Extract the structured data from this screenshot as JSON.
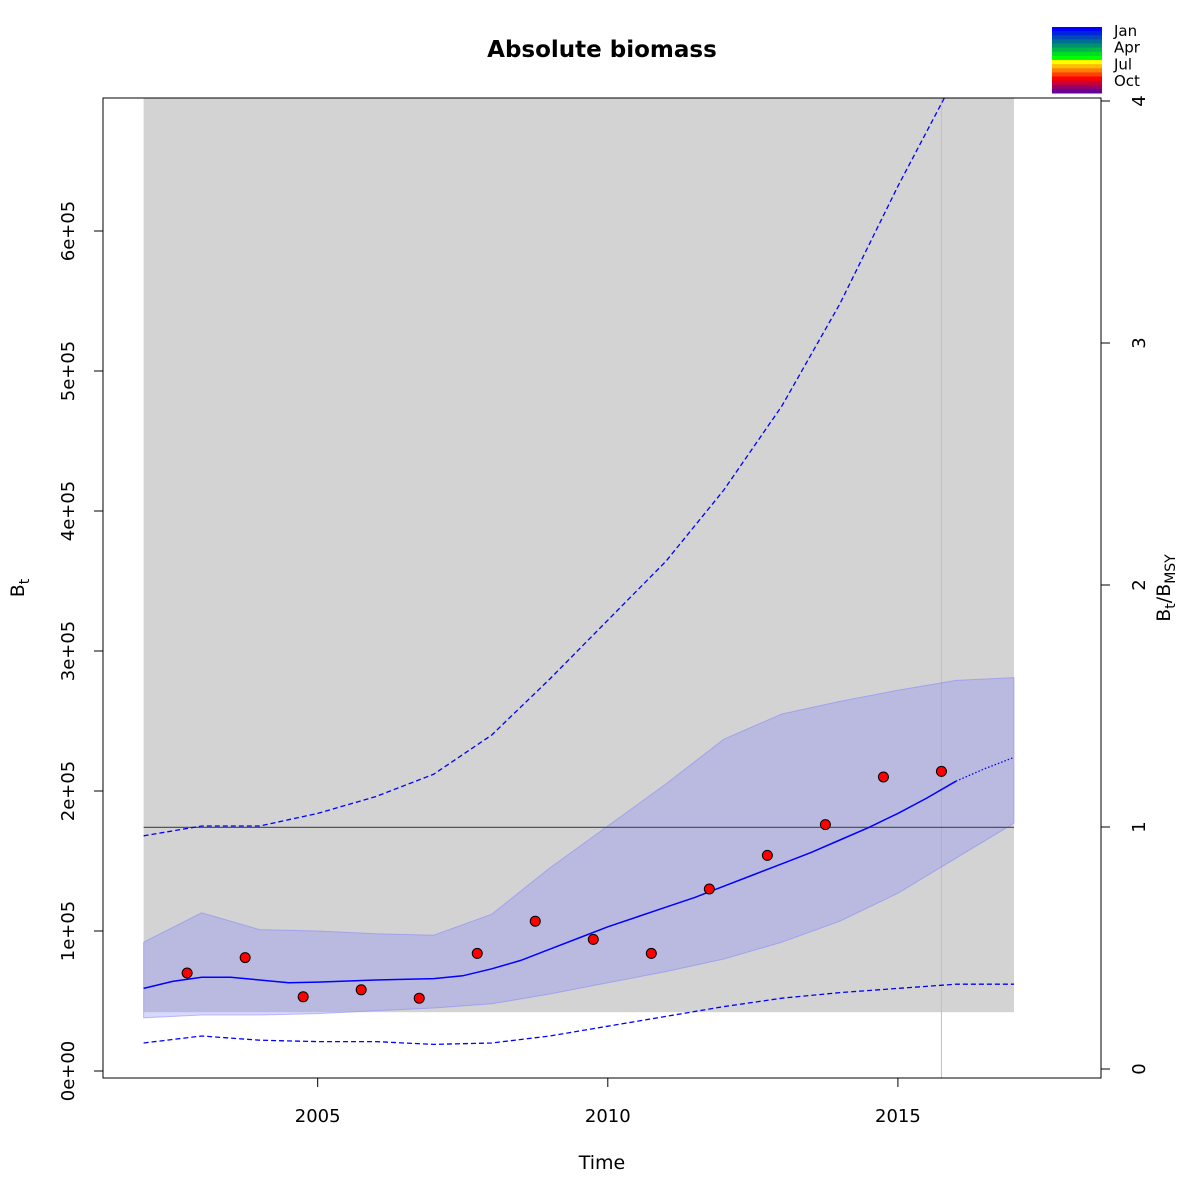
{
  "chart_data": {
    "type": "line",
    "title": "Absolute biomass",
    "xlabel": "Time",
    "ylabel": "B",
    "ylabel_sub": "t",
    "y2label": "B",
    "y2label_parts": [
      "B",
      "t",
      "/B",
      "MSY"
    ],
    "xlim": [
      2001.3,
      2018.5
    ],
    "ylim": [
      -5000,
      695000
    ],
    "y2lim": [
      0,
      4
    ],
    "x_ticks": [
      2005,
      2010,
      2015
    ],
    "x_tick_labels": [
      "2005",
      "2010",
      "2015"
    ],
    "y_ticks": [
      0,
      100000,
      200000,
      300000,
      400000,
      500000,
      600000
    ],
    "y_tick_labels": [
      "0e+00",
      "1e+05",
      "2e+05",
      "3e+05",
      "4e+05",
      "5e+05",
      "6e+05"
    ],
    "y2_ticks": [
      0,
      1,
      2,
      3,
      4
    ],
    "y2_tick_labels": [
      "0",
      "1",
      "2",
      "3",
      "4"
    ],
    "bmsy_line": 174000,
    "shaded_region": {
      "x": [
        2002.0,
        2017.0
      ],
      "y": [
        42000,
        695000
      ],
      "color": "#d3d3d3"
    },
    "vertical_line_x": 2015.75,
    "observations": {
      "color": "#ff0000",
      "x": [
        2002.75,
        2003.75,
        2004.75,
        2005.75,
        2006.75,
        2007.75,
        2008.75,
        2009.75,
        2010.75,
        2011.75,
        2012.75,
        2013.75,
        2014.75,
        2015.75
      ],
      "y": [
        70000,
        81000,
        53000,
        58000,
        52000,
        84000,
        107000,
        94000,
        84000,
        130000,
        154000,
        176000,
        210000,
        214000
      ]
    },
    "estimate": {
      "color": "#0000ff",
      "x": [
        2002.0,
        2002.5,
        2003.0,
        2003.5,
        2004.0,
        2004.5,
        2005.0,
        2006.0,
        2007.0,
        2007.5,
        2008.0,
        2008.5,
        2009.0,
        2009.5,
        2010.0,
        2010.5,
        2011.0,
        2011.5,
        2012.0,
        2012.5,
        2013.0,
        2013.5,
        2014.0,
        2014.5,
        2015.0,
        2015.5,
        2016.0
      ],
      "y": [
        59000,
        64000,
        67000,
        67000,
        65000,
        63000,
        63500,
        65000,
        66000,
        68000,
        73000,
        79000,
        87000,
        95000,
        103000,
        110000,
        117000,
        124000,
        132000,
        140000,
        148000,
        156000,
        165000,
        174000,
        184000,
        195000,
        207000
      ]
    },
    "forecast": {
      "color": "#0000ff",
      "x": [
        2016.0,
        2016.5,
        2017.0
      ],
      "y": [
        207000,
        216000,
        224000
      ]
    },
    "ci_band": {
      "color": "#8080ff",
      "x": [
        2002.0,
        2003.0,
        2004.0,
        2005.0,
        2006.0,
        2007.0,
        2008.0,
        2009.0,
        2010.0,
        2011.0,
        2012.0,
        2013.0,
        2014.0,
        2015.0,
        2016.0,
        2017.0
      ],
      "lower": [
        38000,
        40000,
        40000,
        41000,
        43000,
        45000,
        48000,
        55000,
        63000,
        71000,
        80000,
        92000,
        107000,
        127000,
        152000,
        177000
      ],
      "upper": [
        92000,
        113000,
        101000,
        100000,
        98000,
        97000,
        112000,
        145000,
        175000,
        205000,
        237000,
        255000,
        264000,
        272000,
        279000,
        281000
      ]
    },
    "prediction_upper": {
      "color": "#0000ff",
      "x": [
        2002.0,
        2003.0,
        2004.0,
        2005.0,
        2006.0,
        2007.0,
        2008.0,
        2009.0,
        2010.0,
        2011.0,
        2012.0,
        2013.0,
        2014.0,
        2015.0,
        2015.8
      ],
      "y": [
        168000,
        175000,
        175000,
        184000,
        196000,
        212000,
        240000,
        280000,
        322000,
        364000,
        415000,
        475000,
        548000,
        632000,
        695000
      ]
    },
    "prediction_lower": {
      "color": "#0000ff",
      "x": [
        2002.0,
        2003.0,
        2004.0,
        2005.0,
        2006.0,
        2007.0,
        2008.0,
        2009.0,
        2010.0,
        2011.0,
        2012.0,
        2013.0,
        2014.0,
        2015.0,
        2016.0,
        2017.0
      ],
      "y": [
        20000,
        25000,
        22000,
        21000,
        21000,
        19000,
        20000,
        25000,
        32000,
        39000,
        46000,
        52000,
        56000,
        59000,
        62000,
        62000
      ]
    },
    "legend": {
      "placement": "top-right",
      "labels": [
        "Jan",
        "Apr",
        "Jul",
        "Oct"
      ],
      "colors": [
        "#0000ff",
        "#0024db",
        "#0049b6",
        "#006d92",
        "#00926d",
        "#00b649",
        "#00db24",
        "#00ff00",
        "#ffff00",
        "#ffbf00",
        "#ff8000",
        "#ff4000",
        "#ff0000",
        "#cc0033",
        "#990066",
        "#660099"
      ]
    }
  }
}
